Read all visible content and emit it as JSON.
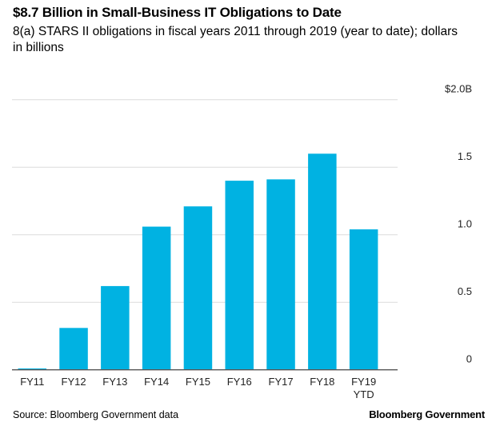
{
  "chart_data": {
    "type": "bar",
    "title": "$8.7 Billion in Small-Business IT Obligations to Date",
    "subtitle": "8(a) STARS II obligations in fiscal years 2011 through 2019 (year to date); dollars in billions",
    "categories": [
      "FY11",
      "FY12",
      "FY13",
      "FY14",
      "FY15",
      "FY16",
      "FY17",
      "FY18",
      "FY19 YTD"
    ],
    "values": [
      0.01,
      0.31,
      0.62,
      1.06,
      1.21,
      1.4,
      1.41,
      1.6,
      1.04
    ],
    "ylim": [
      0,
      2.0
    ],
    "yticks": [
      0,
      0.5,
      1.0,
      1.5,
      2.0
    ],
    "ytick_labels": [
      "0",
      "0.5",
      "1.0",
      "1.5",
      "$2.0B"
    ],
    "y_axis_position": "right",
    "grid": true,
    "bar_color": "#00b2e2",
    "xlabel": "",
    "ylabel": ""
  },
  "footer": {
    "source": "Source: Bloomberg Government data",
    "brand": "Bloomberg Government"
  }
}
